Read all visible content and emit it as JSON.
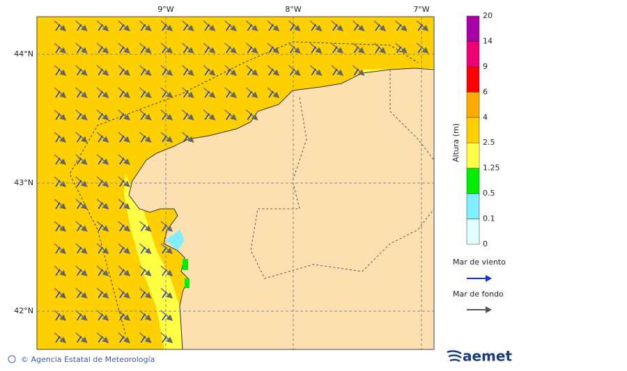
{
  "map": {
    "lat_labels": [
      {
        "label": "44°N"
      },
      {
        "label": "43°N"
      },
      {
        "label": "42°N"
      }
    ],
    "lon_labels": [
      {
        "label": "9°W"
      },
      {
        "label": "8°W"
      },
      {
        "label": "7°W"
      }
    ],
    "colorbar": {
      "title": "Altura (m)",
      "ticks": [
        0,
        0.1,
        0.5,
        1.25,
        2.5,
        4,
        6,
        9,
        14,
        20
      ],
      "colors": [
        "#e0ffff",
        "#80eeff",
        "#00ee00",
        "#ffff44",
        "#ffd000",
        "#ffaa00",
        "#ff0000",
        "#ee0077",
        "#aa00aa"
      ]
    },
    "legend": [
      {
        "label": "Mar de viento",
        "color": "#1030e0"
      },
      {
        "label": "Mar de fondo",
        "color": "#555555"
      }
    ],
    "footer": "© Agencia Estatal de Meteorología",
    "logo": "aemet"
  }
}
